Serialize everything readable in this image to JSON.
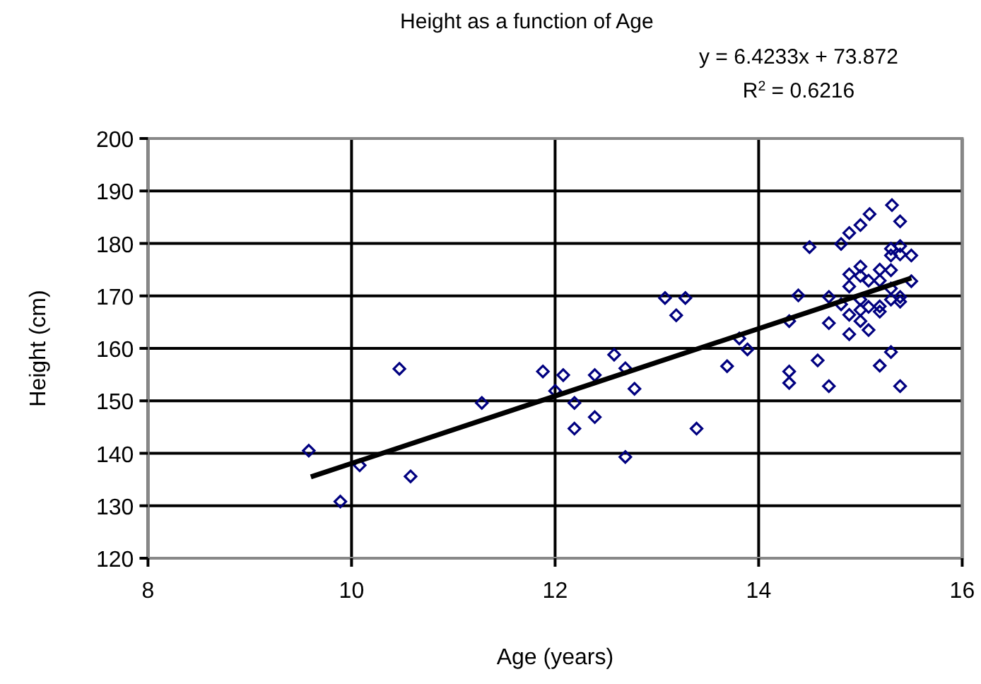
{
  "chart_data": {
    "type": "scatter",
    "title": "Height as a function of Age",
    "xlabel": "Age (years)",
    "ylabel": "Height (cm)",
    "annotations": [
      "y = 6.4233x + 73.872",
      "R$^{2}$ = 0.6216"
    ],
    "xlim": [
      8,
      16
    ],
    "xticks": [
      8,
      10,
      12,
      14,
      16
    ],
    "ylim": [
      120,
      200
    ],
    "yticks": [
      120,
      130,
      140,
      150,
      160,
      170,
      180,
      190,
      200
    ],
    "grid": true,
    "series": [
      {
        "marker": "diamond",
        "color": "#000080",
        "x": [
          9.58,
          9.89,
          10.08,
          10.47,
          10.58,
          11.28,
          11.88,
          12.0,
          12.08,
          12.19,
          12.19,
          12.39,
          12.39,
          12.58,
          12.69,
          12.69,
          12.78,
          13.08,
          13.28,
          13.19,
          13.39,
          13.69,
          13.81,
          13.89,
          15.31,
          15.39,
          15.09,
          15.0,
          14.89,
          14.81,
          14.5,
          15.3,
          15.39,
          15.3,
          15.39,
          15.5,
          15.0,
          14.89,
          15.19,
          15.3,
          15.08,
          15.0,
          14.89,
          15.19,
          15.5,
          15.3,
          14.39,
          14.69,
          14.81,
          15.0,
          15.0,
          15.08,
          15.19,
          15.19,
          15.3,
          15.39,
          15.39,
          14.89,
          14.69,
          14.3,
          15.0,
          15.08,
          14.89,
          15.3,
          15.19,
          14.58,
          14.3,
          14.3,
          14.69,
          15.39
        ],
        "values": [
          140.5,
          130.8,
          137.7,
          156.1,
          135.6,
          149.6,
          155.6,
          151.9,
          154.9,
          149.6,
          144.7,
          154.9,
          146.9,
          158.8,
          156.2,
          139.3,
          152.3,
          169.6,
          169.6,
          166.3,
          144.7,
          156.6,
          161.9,
          159.8,
          187.3,
          184.2,
          185.6,
          183.5,
          182.0,
          179.9,
          179.3,
          179.0,
          179.5,
          177.7,
          177.9,
          177.7,
          175.6,
          174.1,
          175.0,
          174.9,
          172.9,
          173.8,
          171.8,
          172.9,
          172.8,
          171.4,
          170.1,
          169.8,
          168.4,
          169.3,
          167.3,
          167.9,
          168.0,
          167.0,
          169.3,
          169.8,
          168.9,
          166.4,
          164.8,
          165.2,
          165.2,
          163.5,
          162.7,
          159.3,
          156.7,
          157.7,
          155.6,
          153.4,
          152.8,
          152.8
        ]
      },
      {
        "type": "line",
        "color": "#000000",
        "x": [
          9.6,
          15.5
        ],
        "values": [
          135.5,
          173.4
        ],
        "line_style": "solid",
        "marker": "none"
      }
    ]
  }
}
